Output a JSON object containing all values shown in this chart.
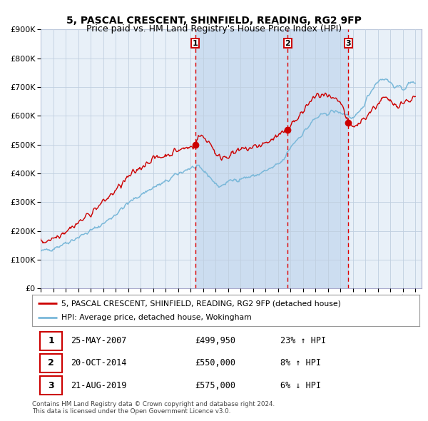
{
  "title": "5, PASCAL CRESCENT, SHINFIELD, READING, RG2 9FP",
  "subtitle": "Price paid vs. HM Land Registry's House Price Index (HPI)",
  "ylim": [
    0,
    900000
  ],
  "yticks": [
    0,
    100000,
    200000,
    300000,
    400000,
    500000,
    600000,
    700000,
    800000,
    900000
  ],
  "xlabel_years_start": 1995,
  "xlabel_years_end": 2025,
  "sale1_date": "25-MAY-2007",
  "sale1_price": 499950,
  "sale1_hpi_text": "23% ↑ HPI",
  "sale1_x": 2007.38,
  "sale2_date": "20-OCT-2014",
  "sale2_price": 550000,
  "sale2_hpi_text": "8% ↑ HPI",
  "sale2_x": 2014.79,
  "sale3_date": "21-AUG-2019",
  "sale3_price": 575000,
  "sale3_hpi_text": "6% ↓ HPI",
  "sale3_x": 2019.63,
  "hpi_color": "#7ab8d9",
  "price_color": "#cc0000",
  "shade_color": "#ccddf0",
  "dashed_color": "#dd0000",
  "background_color": "#e8f0f8",
  "grid_color": "#c0cfe0",
  "legend_label_price": "5, PASCAL CRESCENT, SHINFIELD, READING, RG2 9FP (detached house)",
  "legend_label_hpi": "HPI: Average price, detached house, Wokingham",
  "footnote_line1": "Contains HM Land Registry data © Crown copyright and database right 2024.",
  "footnote_line2": "This data is licensed under the Open Government Licence v3.0."
}
